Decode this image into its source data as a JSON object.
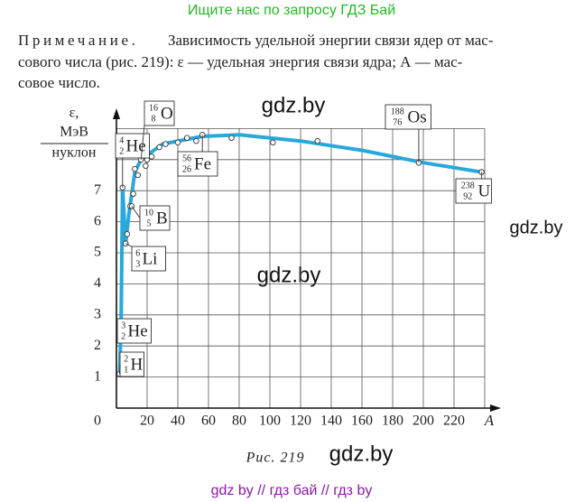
{
  "header": "Ищите нас по запросу ГДЗ Бай",
  "note": {
    "label": "Примечание.",
    "lines": [
      "Зависимость удельной энергии связи ядер от мас-",
      "сового числа (рис. 219): ε — удельная энергия связи ядра; А — мас-",
      "совое число."
    ]
  },
  "watermarks": [
    "gdz.by",
    "gdz.by",
    "gdz.by",
    "gdz.by"
  ],
  "caption": "Рис. 219",
  "footer": "gdz by  //  гдз бай  //  гдз by",
  "chart_data": {
    "type": "scatter",
    "y_label": [
      "ε,",
      "МэВ",
      "нуклон"
    ],
    "x_label": "A",
    "xlim": [
      0,
      240
    ],
    "ylim": [
      0,
      9.6
    ],
    "xticks": [
      20,
      40,
      60,
      80,
      100,
      120,
      140,
      160,
      180,
      200,
      220
    ],
    "yticks": [
      0,
      1,
      2,
      3,
      4,
      5,
      6,
      7
    ],
    "xgrid": [
      20,
      40,
      60,
      80,
      100,
      120,
      140,
      160,
      180,
      200,
      220,
      240
    ],
    "ygrid": [
      1,
      2,
      3,
      4,
      5,
      6,
      7,
      8,
      9
    ],
    "series": [
      {
        "name": "points",
        "color": "#ffffff",
        "x": [
          2,
          3,
          4,
          6,
          7,
          9,
          10,
          11,
          12,
          14,
          16,
          19,
          20,
          23,
          28,
          32,
          40,
          46,
          52,
          56,
          75,
          102,
          131,
          197,
          238
        ],
        "values": [
          1.1,
          2.6,
          7.1,
          5.3,
          5.6,
          6.5,
          6.5,
          6.9,
          7.7,
          7.5,
          8.0,
          7.8,
          8.0,
          8.1,
          8.4,
          8.5,
          8.55,
          8.7,
          8.6,
          8.8,
          8.7,
          8.55,
          8.6,
          7.9,
          7.6
        ]
      },
      {
        "name": "curve",
        "color": "#29a8dc",
        "x": [
          2,
          3,
          4,
          6,
          8,
          12,
          16,
          30,
          56,
          80,
          120,
          160,
          200,
          238
        ],
        "values": [
          1.1,
          2.6,
          7.1,
          5.3,
          6.2,
          7.6,
          8.0,
          8.5,
          8.75,
          8.8,
          8.6,
          8.3,
          7.9,
          7.6
        ]
      }
    ],
    "annotations": [
      {
        "mass": "2",
        "charge": "1",
        "symbol": "H"
      },
      {
        "mass": "3",
        "charge": "2",
        "symbol": "He"
      },
      {
        "mass": "4",
        "charge": "2",
        "symbol": "He"
      },
      {
        "mass": "6",
        "charge": "3",
        "symbol": "Li"
      },
      {
        "mass": "10",
        "charge": "5",
        "symbol": "B"
      },
      {
        "mass": "16",
        "charge": "8",
        "symbol": "O"
      },
      {
        "mass": "56",
        "charge": "26",
        "symbol": "Fe"
      },
      {
        "mass": "188",
        "charge": "76",
        "symbol": "Os"
      },
      {
        "mass": "238",
        "charge": "92",
        "symbol": "U"
      }
    ]
  }
}
